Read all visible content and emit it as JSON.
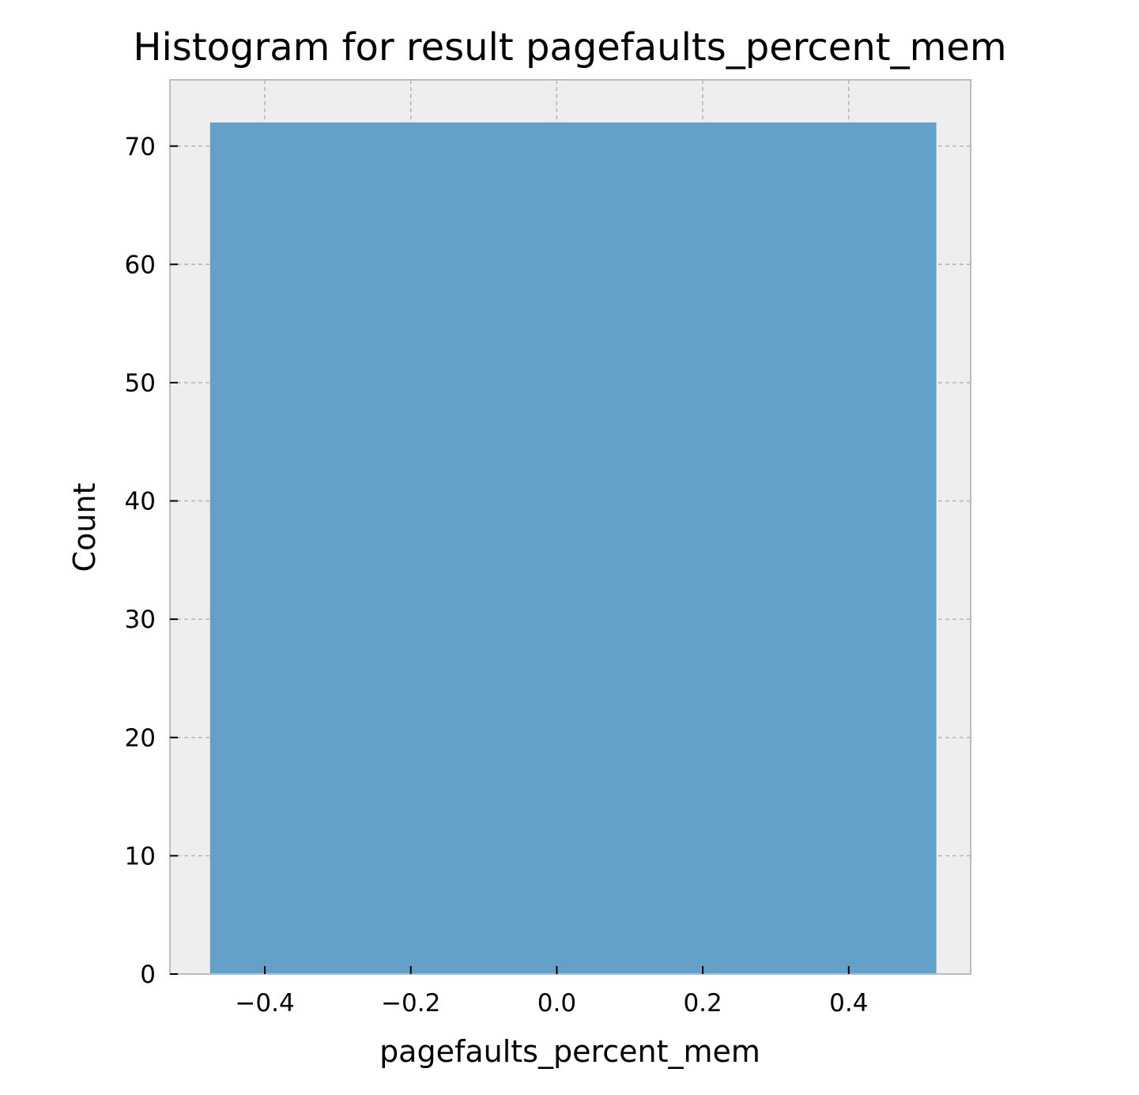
{
  "chart_data": {
    "type": "bar",
    "title": "Histogram for result pagefaults_percent_mem",
    "xlabel": "pagefaults_percent_mem",
    "ylabel": "Count",
    "bins": [
      {
        "x0": -0.475,
        "x1": 0.52,
        "count": 72
      }
    ],
    "xlim": [
      -0.53,
      0.567
    ],
    "ylim": [
      0,
      75.6
    ],
    "x_ticks": [
      -0.4,
      -0.2,
      0.0,
      0.2,
      0.4
    ],
    "x_tick_labels": [
      "−0.4",
      "−0.2",
      "0.0",
      "0.2",
      "0.4"
    ],
    "y_ticks": [
      0,
      10,
      20,
      30,
      40,
      50,
      60,
      70
    ],
    "y_tick_labels": [
      "0",
      "10",
      "20",
      "30",
      "40",
      "50",
      "60",
      "70"
    ],
    "grid": true,
    "legend": "none",
    "colors": {
      "bar": "#64a1c9",
      "plot_background": "#eeeeee",
      "grid": "#b0b0b0",
      "spine": "#bcbcbc"
    }
  }
}
